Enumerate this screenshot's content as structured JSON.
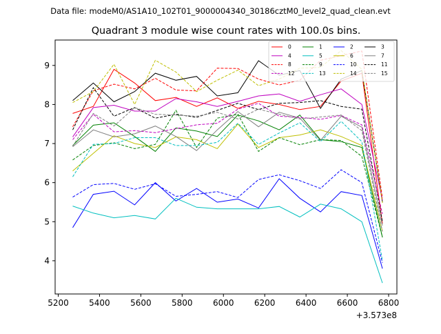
{
  "header": "Data file: modeM0/AS1A10_102T01_9000004340_30186cztM0_level2_quad_clean.evt",
  "chart_data": {
    "type": "line",
    "title": "Quadrant 3 module wise count rates with 100.0s bins.",
    "xlabel": "",
    "ylabel": "",
    "x_offset_label": "+3.573e8",
    "xlim": [
      5185,
      6840
    ],
    "ylim": [
      3.15,
      9.65
    ],
    "x_ticks": [
      5200,
      5400,
      5600,
      5800,
      6000,
      6200,
      6400,
      6600,
      6800
    ],
    "x_tick_labels": [
      "5200",
      "5400",
      "5600",
      "5800",
      "6000",
      "6200",
      "6400",
      "6600",
      "6800"
    ],
    "y_ticks": [
      4,
      5,
      6,
      7,
      8,
      9
    ],
    "y_tick_labels": [
      "4",
      "5",
      "6",
      "7",
      "8",
      "9"
    ],
    "grid": false,
    "legend_position": "top-right",
    "x": [
      5270,
      5370,
      5470,
      5570,
      5670,
      5770,
      5870,
      5970,
      6070,
      6170,
      6270,
      6370,
      6470,
      6570,
      6670,
      6770
    ],
    "series": [
      {
        "name": "0",
        "color": "#ff0000",
        "dash": "solid",
        "values": [
          7.77,
          7.95,
          8.9,
          8.55,
          8.1,
          8.18,
          7.95,
          8.17,
          7.9,
          8.08,
          8.0,
          7.87,
          7.95,
          8.6,
          8.8,
          4.95
        ]
      },
      {
        "name": "1",
        "color": "#008000",
        "dash": "solid",
        "values": [
          6.95,
          7.47,
          7.53,
          7.18,
          6.8,
          7.4,
          7.32,
          7.18,
          7.73,
          7.58,
          7.35,
          7.73,
          7.1,
          7.05,
          6.9,
          4.6
        ]
      },
      {
        "name": "2",
        "color": "#0000ff",
        "dash": "solid",
        "values": [
          4.85,
          5.7,
          5.78,
          5.43,
          6.0,
          5.53,
          5.85,
          5.5,
          5.58,
          5.35,
          6.1,
          5.6,
          5.25,
          5.77,
          5.67,
          3.8
        ]
      },
      {
        "name": "3",
        "color": "#000000",
        "dash": "solid",
        "values": [
          8.1,
          8.55,
          8.07,
          8.33,
          8.8,
          8.62,
          8.72,
          8.22,
          8.3,
          9.12,
          8.75,
          8.87,
          7.9,
          8.65,
          8.87,
          5.5
        ]
      },
      {
        "name": "4",
        "color": "#bf00bf",
        "dash": "solid",
        "values": [
          7.17,
          7.92,
          7.98,
          7.83,
          7.83,
          8.15,
          8.07,
          7.95,
          8.08,
          8.22,
          8.27,
          8.08,
          8.25,
          8.4,
          8.0,
          5.55
        ]
      },
      {
        "name": "5",
        "color": "#00bfbf",
        "dash": "solid",
        "values": [
          5.4,
          5.22,
          5.1,
          5.16,
          5.07,
          5.6,
          5.37,
          5.33,
          5.33,
          5.33,
          5.39,
          5.12,
          5.45,
          5.33,
          5.0,
          3.43
        ]
      },
      {
        "name": "6",
        "color": "#bfbf00",
        "dash": "solid",
        "values": [
          6.3,
          6.75,
          7.2,
          7.0,
          6.9,
          7.17,
          7.1,
          6.87,
          7.5,
          6.9,
          7.15,
          7.22,
          7.35,
          7.18,
          6.95,
          4.75
        ]
      },
      {
        "name": "7",
        "color": "#808080",
        "dash": "solid",
        "values": [
          6.92,
          7.35,
          7.17,
          7.25,
          7.45,
          7.18,
          6.82,
          7.35,
          7.82,
          7.43,
          7.8,
          7.65,
          7.08,
          7.7,
          7.42,
          4.9
        ]
      },
      {
        "name": "8",
        "color": "#ff0000",
        "dash": "dashed",
        "values": [
          7.43,
          8.35,
          8.52,
          8.4,
          8.67,
          8.37,
          8.35,
          8.93,
          8.92,
          8.65,
          8.5,
          8.62,
          9.13,
          9.25,
          9.37,
          5.6
        ]
      },
      {
        "name": "9",
        "color": "#008000",
        "dash": "dashed",
        "values": [
          6.58,
          6.95,
          7.02,
          6.87,
          6.98,
          7.85,
          6.9,
          7.65,
          7.75,
          6.8,
          7.15,
          6.97,
          7.1,
          7.08,
          6.67,
          4.6
        ]
      },
      {
        "name": "10",
        "color": "#0000ff",
        "dash": "dashed",
        "values": [
          5.63,
          5.95,
          5.98,
          5.83,
          5.97,
          5.65,
          5.7,
          5.77,
          5.62,
          6.08,
          6.2,
          6.05,
          5.85,
          6.33,
          6.0,
          3.95
        ]
      },
      {
        "name": "11",
        "color": "#000000",
        "dash": "dashed",
        "values": [
          7.35,
          8.43,
          7.7,
          7.92,
          7.65,
          7.75,
          7.67,
          7.85,
          8.03,
          7.87,
          8.03,
          8.05,
          8.1,
          7.95,
          7.88,
          5.0
        ]
      },
      {
        "name": "12",
        "color": "#bf00bf",
        "dash": "dashed",
        "values": [
          7.1,
          7.75,
          7.3,
          7.33,
          7.28,
          7.38,
          7.48,
          7.52,
          7.88,
          8.03,
          7.7,
          7.67,
          7.62,
          7.72,
          7.48,
          5.2
        ]
      },
      {
        "name": "13",
        "color": "#00bfbf",
        "dash": "dashed",
        "values": [
          6.15,
          6.98,
          7.0,
          7.15,
          7.15,
          6.95,
          6.95,
          7.03,
          7.52,
          6.98,
          7.27,
          7.53,
          7.05,
          7.57,
          7.05,
          4.0
        ]
      },
      {
        "name": "14",
        "color": "#bfbf00",
        "dash": "dashed",
        "values": [
          8.05,
          8.33,
          9.03,
          8.0,
          9.13,
          8.83,
          8.33,
          8.62,
          8.88,
          8.48,
          8.65,
          8.93,
          8.95,
          9.38,
          8.9,
          5.48
        ]
      },
      {
        "name": "15",
        "color": "#808080",
        "dash": "dashed",
        "values": [
          6.93,
          7.77,
          7.45,
          7.92,
          7.75,
          7.73,
          7.7,
          7.8,
          7.63,
          7.88,
          7.75,
          7.63,
          7.68,
          7.73,
          7.33,
          4.75
        ]
      }
    ]
  }
}
